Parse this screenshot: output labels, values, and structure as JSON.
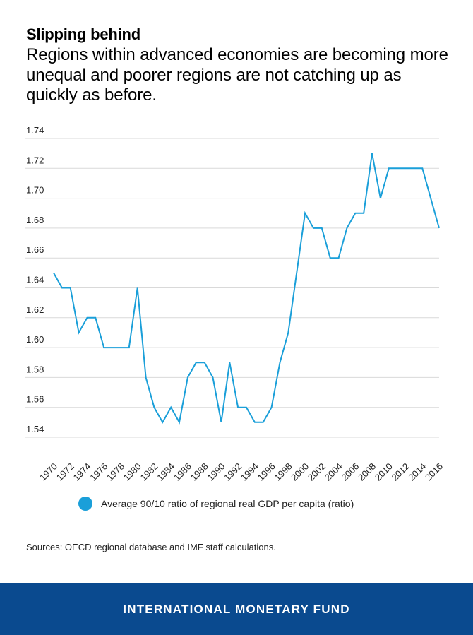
{
  "header": {
    "title": "Slipping behind",
    "subtitle": "Regions within advanced economies are becoming more unequal and poorer regions are not catching up as quickly as before."
  },
  "legend": {
    "label": "Average 90/10 ratio of regional real GDP per capita (ratio)"
  },
  "source": "Sources: OECD regional database and IMF staff calculations.",
  "footer": {
    "label": "INTERNATIONAL MONETARY FUND"
  },
  "colors": {
    "series": "#1a9fd9",
    "grid": "#d9d9d9",
    "footer_bg": "#0a4a8f",
    "text": "#222222"
  },
  "chart_data": {
    "type": "line",
    "title": "",
    "xlabel": "",
    "ylabel": "",
    "ylim": [
      1.54,
      1.74
    ],
    "y_ticks": [
      "1.54",
      "1.56",
      "1.58",
      "1.60",
      "1.62",
      "1.64",
      "1.66",
      "1.68",
      "1.70",
      "1.72",
      "1.74"
    ],
    "x_tick_labels": [
      "1970",
      "1972",
      "1974",
      "1976",
      "1978",
      "1980",
      "1982",
      "1984",
      "1986",
      "1988",
      "1990",
      "1992",
      "1994",
      "1996",
      "1998",
      "2000",
      "2002",
      "2004",
      "2006",
      "2008",
      "2010",
      "2012",
      "2014",
      "2016"
    ],
    "grid": true,
    "legend_position": "bottom",
    "x": [
      1970,
      1971,
      1972,
      1973,
      1974,
      1975,
      1976,
      1977,
      1978,
      1979,
      1980,
      1981,
      1982,
      1983,
      1984,
      1985,
      1986,
      1987,
      1988,
      1989,
      1990,
      1991,
      1992,
      1993,
      1994,
      1995,
      1996,
      1997,
      1998,
      1999,
      2000,
      2001,
      2002,
      2003,
      2004,
      2005,
      2006,
      2007,
      2008,
      2009,
      2010,
      2011,
      2012,
      2013,
      2014,
      2015,
      2016
    ],
    "series": [
      {
        "name": "Average 90/10 ratio of regional real GDP per capita (ratio)",
        "values": [
          1.65,
          1.64,
          1.64,
          1.61,
          1.62,
          1.62,
          1.6,
          1.6,
          1.6,
          1.6,
          1.64,
          1.58,
          1.56,
          1.55,
          1.56,
          1.55,
          1.58,
          1.59,
          1.59,
          1.58,
          1.55,
          1.59,
          1.56,
          1.56,
          1.55,
          1.55,
          1.56,
          1.59,
          1.61,
          1.65,
          1.69,
          1.68,
          1.68,
          1.66,
          1.66,
          1.68,
          1.69,
          1.69,
          1.73,
          1.7,
          1.72,
          1.72,
          1.72,
          1.72,
          1.72,
          1.7,
          1.68
        ]
      }
    ]
  }
}
